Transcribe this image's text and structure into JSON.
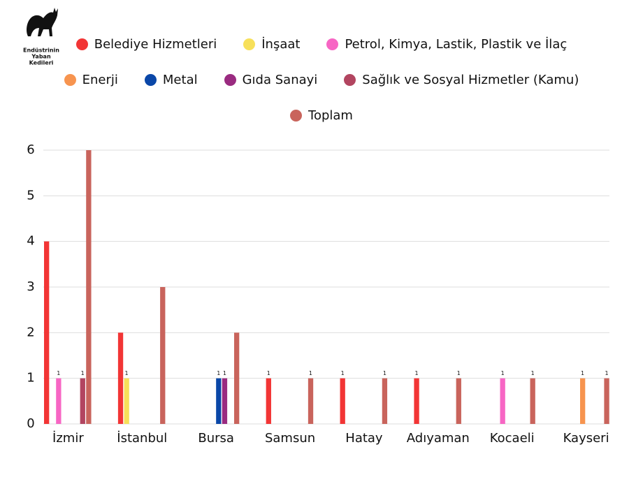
{
  "logo": {
    "lines": [
      "Endüstrinin",
      "Yaban",
      "Kedileri"
    ]
  },
  "chart_data": {
    "type": "bar",
    "categories": [
      "İzmir",
      "İstanbul",
      "Bursa",
      "Samsun",
      "Hatay",
      "Adıyaman",
      "Kocaeli",
      "Kayseri"
    ],
    "series": [
      {
        "name": "Belediye Hizmetleri",
        "color": "#f23535",
        "values": [
          4,
          2,
          null,
          1,
          1,
          1,
          null,
          null
        ],
        "value_labels": [
          null,
          null,
          null,
          "1",
          "1",
          "1",
          null,
          null
        ]
      },
      {
        "name": "İnşaat",
        "color": "#f7e05a",
        "values": [
          null,
          1,
          null,
          null,
          null,
          null,
          null,
          null
        ],
        "value_labels": [
          null,
          "1",
          null,
          null,
          null,
          null,
          null,
          null
        ]
      },
      {
        "name": "Petrol, Kimya, Lastik, Plastik ve İlaç",
        "color": "#f766c4",
        "values": [
          1,
          null,
          null,
          null,
          null,
          null,
          1,
          null
        ],
        "value_labels": [
          "1",
          null,
          null,
          null,
          null,
          null,
          "1",
          null
        ]
      },
      {
        "name": "Enerji",
        "color": "#f7944f",
        "values": [
          null,
          null,
          null,
          null,
          null,
          null,
          null,
          1
        ],
        "value_labels": [
          null,
          null,
          null,
          null,
          null,
          null,
          null,
          "1"
        ]
      },
      {
        "name": "Metal",
        "color": "#0a47a8",
        "values": [
          null,
          null,
          1,
          null,
          null,
          null,
          null,
          null
        ],
        "value_labels": [
          null,
          null,
          "1",
          null,
          null,
          null,
          null,
          null
        ]
      },
      {
        "name": "Gıda Sanayi",
        "color": "#9a2b80",
        "values": [
          null,
          null,
          1,
          null,
          null,
          null,
          null,
          null
        ],
        "value_labels": [
          null,
          null,
          "1",
          null,
          null,
          null,
          null,
          null
        ]
      },
      {
        "name": "Sağlık ve Sosyal Hizmetler (Kamu)",
        "color": "#b24560",
        "values": [
          1,
          null,
          null,
          null,
          null,
          null,
          null,
          null
        ],
        "value_labels": [
          "1",
          null,
          null,
          null,
          null,
          null,
          null,
          null
        ]
      },
      {
        "name": "Toplam",
        "color": "#c9645c",
        "values": [
          6,
          3,
          2,
          1,
          1,
          1,
          1,
          1
        ],
        "value_labels": [
          null,
          null,
          null,
          "1",
          "1",
          "1",
          "1",
          "1"
        ]
      }
    ],
    "ylim": [
      0,
      6
    ],
    "yticks": [
      0,
      1,
      2,
      3,
      4,
      5,
      6
    ],
    "grid": true
  }
}
